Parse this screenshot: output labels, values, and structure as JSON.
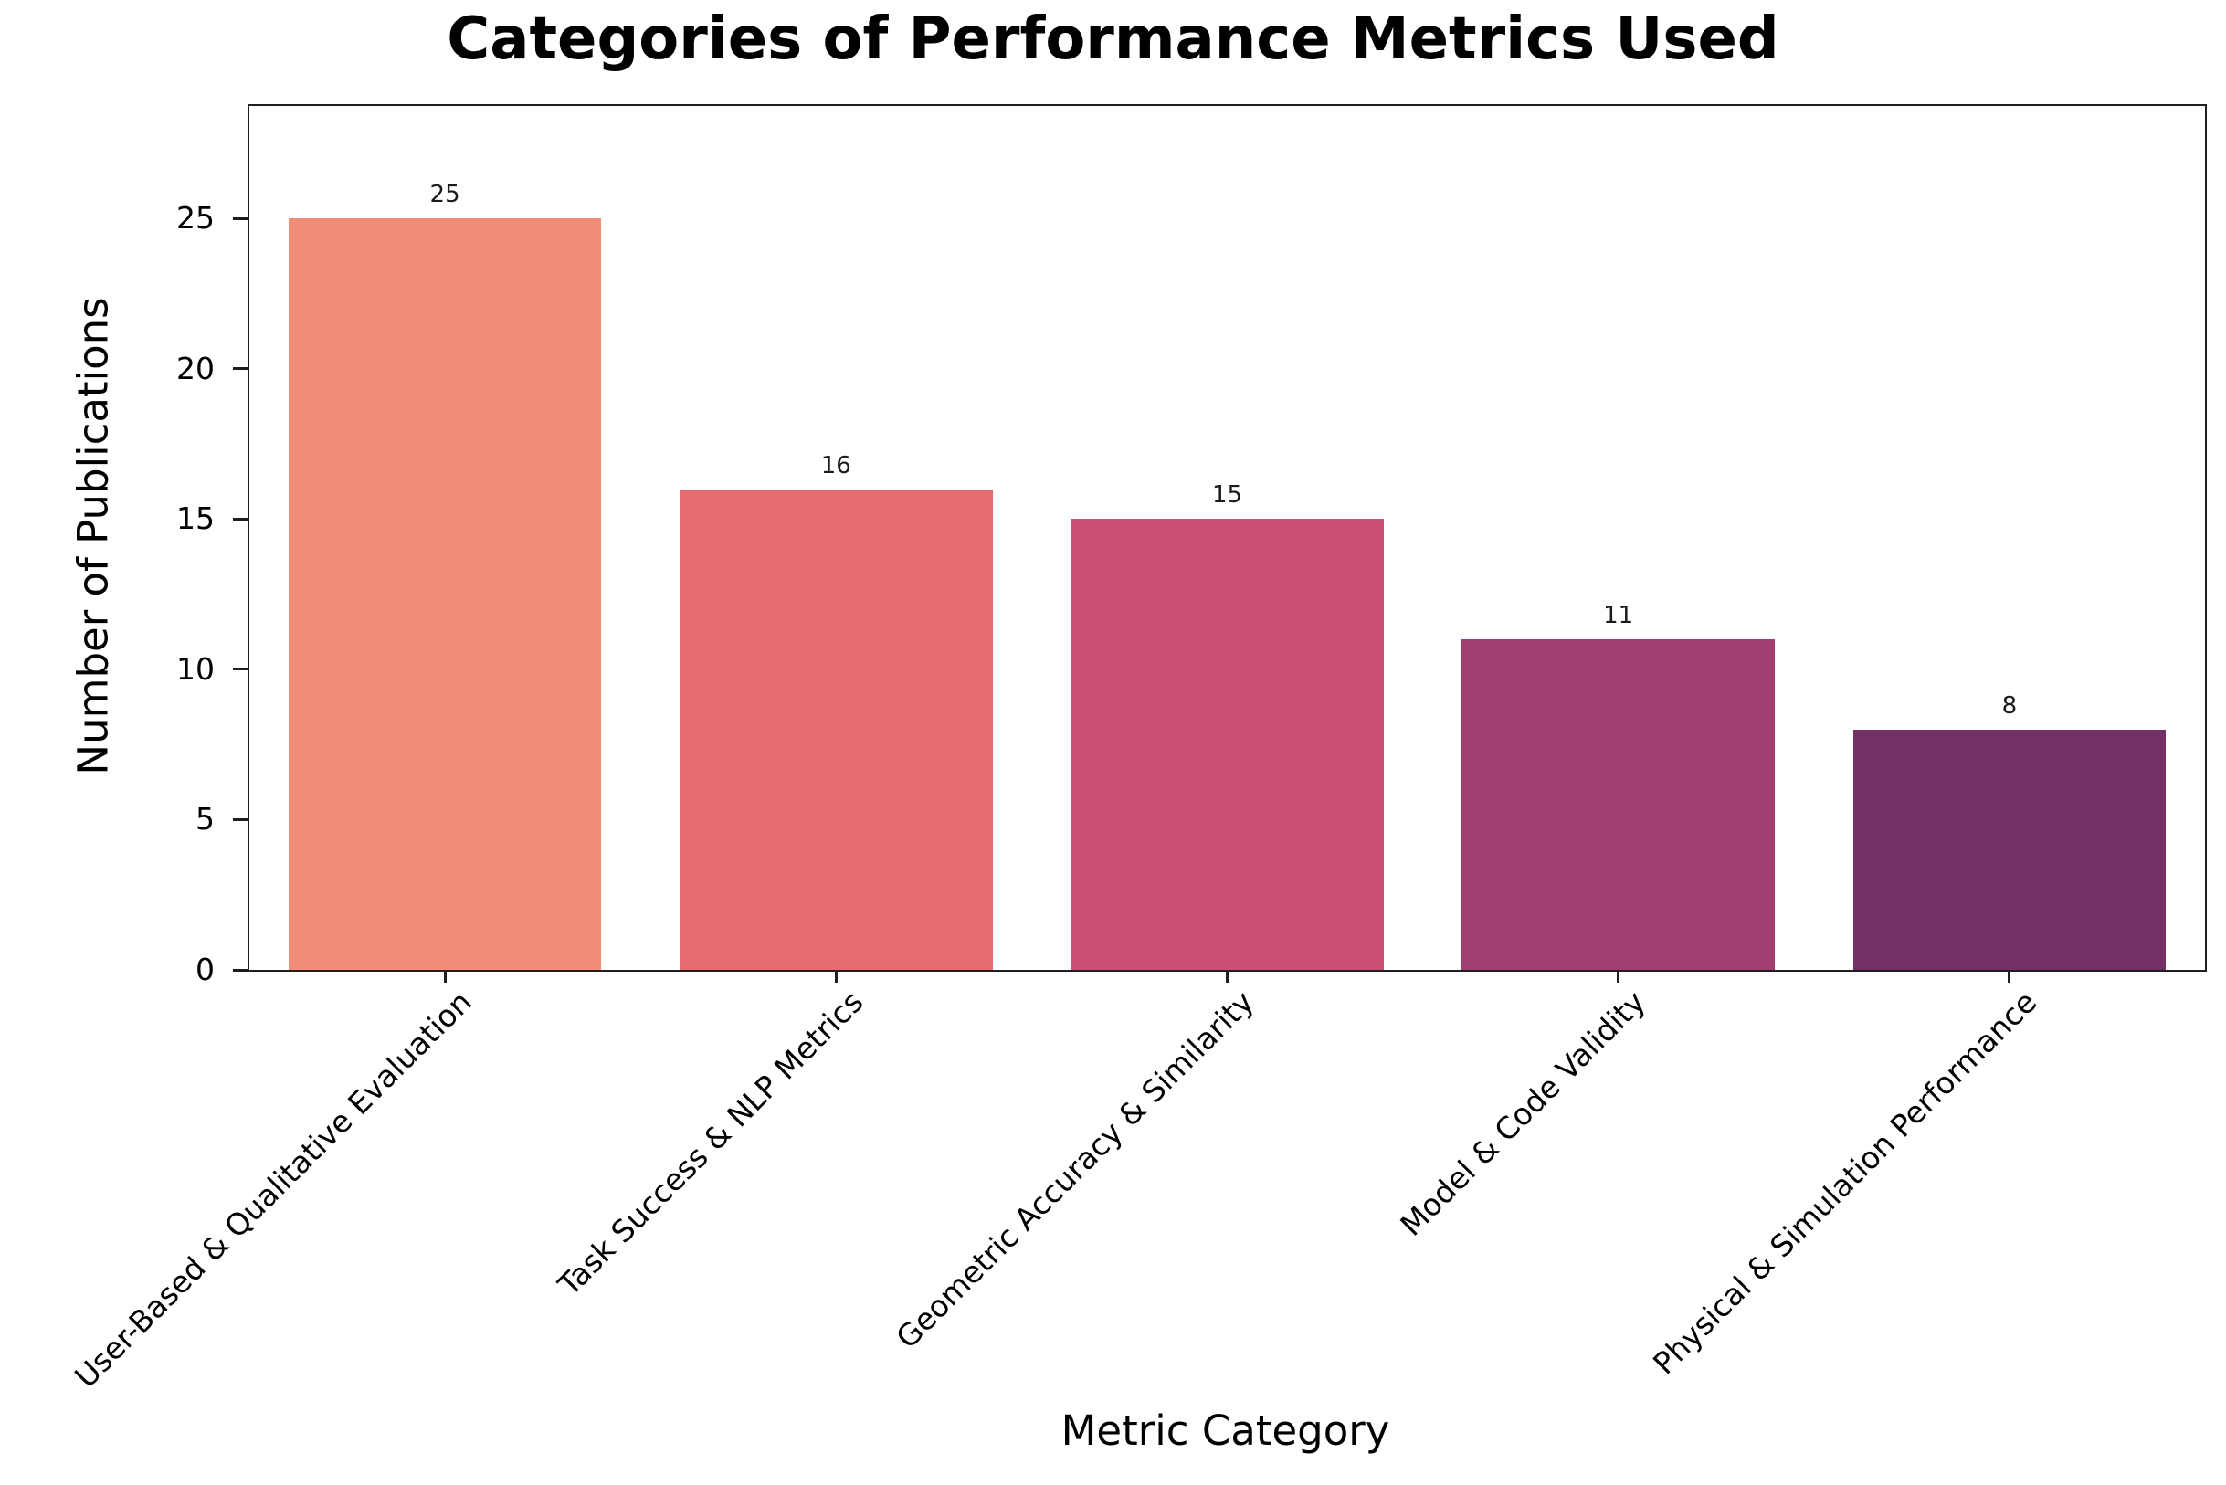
{
  "chart_data": {
    "type": "bar",
    "title": "Categories of Performance Metrics Used",
    "xlabel": "Metric Category",
    "ylabel": "Number of Publications",
    "categories": [
      "User-Based & Qualitative Evaluation",
      "Task Success & NLP Metrics",
      "Geometric Accuracy & Similarity",
      "Model & Code Validity",
      "Physical & Simulation Performance"
    ],
    "values": [
      25,
      16,
      15,
      11,
      8
    ],
    "bar_value_labels": [
      "25",
      "16",
      "15",
      "11",
      "8"
    ],
    "bar_colors": [
      "#F08E78",
      "#E66B6E",
      "#C94F73",
      "#A33E70",
      "#723067"
    ],
    "ylim": [
      0,
      28.75
    ],
    "yticks": [
      0,
      5,
      10,
      15,
      20,
      25
    ],
    "bar_width_fraction": 0.8,
    "x_tick_rotation_deg": 45,
    "grid": false,
    "legend": "none",
    "background_color": "#FFFFFF",
    "axis_color": "#1F1F1F"
  }
}
